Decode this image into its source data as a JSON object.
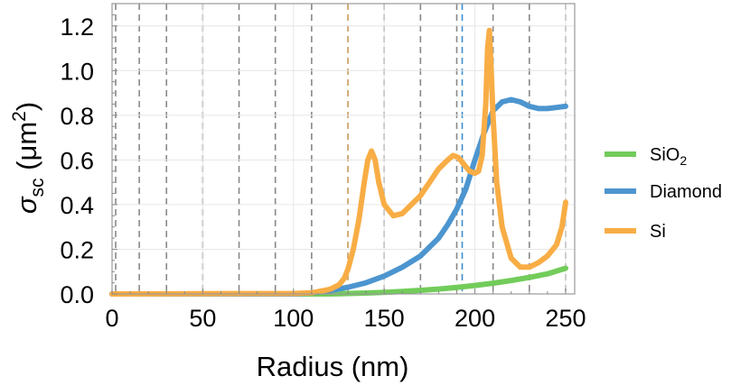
{
  "chart_data": {
    "type": "line",
    "xlabel": "Radius (nm)",
    "ylabel": {
      "base": "σ",
      "sub": "sc",
      "rest": " (μm",
      "sup": "2",
      "end": ")"
    },
    "xlim": [
      0,
      255
    ],
    "ylim": [
      0,
      1.3
    ],
    "x_ticks": [
      0,
      50,
      100,
      150,
      200,
      250
    ],
    "y_ticks": [
      0.0,
      0.2,
      0.4,
      0.6,
      0.8,
      1.0,
      1.2
    ],
    "y_tick_labels": [
      "0.0",
      "0.2",
      "0.4",
      "0.6",
      "0.8",
      "1.0",
      "1.2"
    ],
    "grid": true,
    "legend_position": "right",
    "legend": [
      {
        "text": "SiO",
        "sub": "2",
        "color": "#72cc5a"
      },
      {
        "text": "Diamond",
        "sub": "",
        "color": "#4c95cf"
      },
      {
        "text": "Si",
        "sub": "",
        "color": "#f8ad45"
      }
    ],
    "vlines": [
      {
        "x": 2,
        "color": "#888888"
      },
      {
        "x": 15,
        "color": "#888888"
      },
      {
        "x": 30,
        "color": "#888888"
      },
      {
        "x": 50,
        "color": "#888888"
      },
      {
        "x": 70,
        "color": "#888888"
      },
      {
        "x": 90,
        "color": "#888888"
      },
      {
        "x": 110,
        "color": "#888888"
      },
      {
        "x": 130,
        "color": "#c89a5a"
      },
      {
        "x": 150,
        "color": "#888888"
      },
      {
        "x": 170,
        "color": "#888888"
      },
      {
        "x": 190,
        "color": "#888888"
      },
      {
        "x": 193,
        "color": "#3c8ccf"
      },
      {
        "x": 210,
        "color": "#888888"
      },
      {
        "x": 230,
        "color": "#888888"
      },
      {
        "x": 250,
        "color": "#888888"
      }
    ],
    "series": [
      {
        "color": "#72cc5a",
        "x": [
          0,
          120,
          130,
          140,
          150,
          160,
          170,
          180,
          190,
          200,
          210,
          220,
          230,
          240,
          250
        ],
        "y": [
          0,
          0,
          0.002,
          0.004,
          0.007,
          0.011,
          0.016,
          0.022,
          0.029,
          0.038,
          0.048,
          0.06,
          0.074,
          0.09,
          0.115
        ]
      },
      {
        "color": "#4c95cf",
        "x": [
          0,
          100,
          110,
          120,
          130,
          140,
          150,
          160,
          170,
          180,
          185,
          190,
          195,
          200,
          205,
          210,
          215,
          220,
          225,
          230,
          235,
          240,
          245,
          250
        ],
        "y": [
          0,
          0,
          0.005,
          0.015,
          0.03,
          0.05,
          0.08,
          0.12,
          0.17,
          0.25,
          0.31,
          0.38,
          0.47,
          0.6,
          0.72,
          0.82,
          0.86,
          0.87,
          0.86,
          0.84,
          0.83,
          0.83,
          0.835,
          0.84
        ]
      },
      {
        "color": "#f8ad45",
        "x": [
          0,
          100,
          110,
          120,
          125,
          128,
          130,
          133,
          136,
          139,
          141,
          143,
          145,
          147,
          150,
          155,
          160,
          165,
          170,
          175,
          180,
          185,
          188,
          191,
          194,
          197,
          200,
          202,
          204,
          206,
          207,
          208,
          209,
          210,
          212,
          215,
          220,
          225,
          230,
          235,
          240,
          245,
          248,
          250
        ],
        "y": [
          0,
          0.002,
          0.005,
          0.02,
          0.04,
          0.07,
          0.11,
          0.2,
          0.33,
          0.5,
          0.6,
          0.64,
          0.6,
          0.5,
          0.4,
          0.35,
          0.36,
          0.4,
          0.44,
          0.5,
          0.56,
          0.6,
          0.62,
          0.61,
          0.58,
          0.55,
          0.54,
          0.55,
          0.62,
          0.85,
          1.1,
          1.18,
          1.0,
          0.8,
          0.5,
          0.3,
          0.16,
          0.12,
          0.12,
          0.14,
          0.17,
          0.22,
          0.3,
          0.41
        ]
      }
    ]
  }
}
